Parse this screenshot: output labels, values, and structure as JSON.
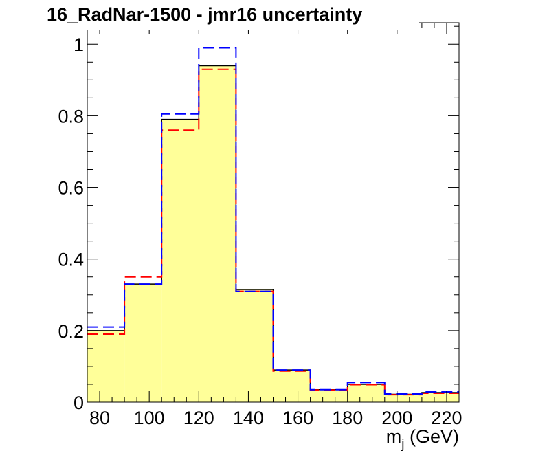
{
  "chart_data": {
    "type": "bar",
    "title": "16_RadNar-1500 - jmr16 uncertainty",
    "xlabel_main": "m",
    "xlabel_sub": "j",
    "xlabel_unit": " (GeV)",
    "xlim": [
      75,
      225
    ],
    "ylim": [
      0,
      1.06
    ],
    "bin_edges": [
      75,
      90,
      105,
      120,
      135,
      150,
      165,
      180,
      195,
      210,
      225
    ],
    "x_ticks": [
      80,
      100,
      120,
      140,
      160,
      180,
      200,
      220
    ],
    "y_ticks": [
      0,
      0.2,
      0.4,
      0.6,
      0.8,
      1
    ],
    "y_tick_labels": [
      "0",
      "0.2",
      "0.4",
      "0.6",
      "0.8",
      "1"
    ],
    "grid": false,
    "series": [
      {
        "style": "filled-nominal",
        "color": "#ffff99",
        "line_color": "#000000",
        "values": [
          0.2,
          0.33,
          0.79,
          0.94,
          0.315,
          0.09,
          0.035,
          0.05,
          0.022,
          0.027
        ]
      },
      {
        "style": "dashed-red",
        "color": "#ff0000",
        "values": [
          0.19,
          0.35,
          0.76,
          0.93,
          0.31,
          0.087,
          0.034,
          0.049,
          0.021,
          0.025
        ]
      },
      {
        "style": "dashed-blue",
        "color": "#0000ff",
        "values": [
          0.21,
          0.33,
          0.805,
          0.99,
          0.31,
          0.09,
          0.035,
          0.055,
          0.023,
          0.029
        ]
      }
    ]
  }
}
